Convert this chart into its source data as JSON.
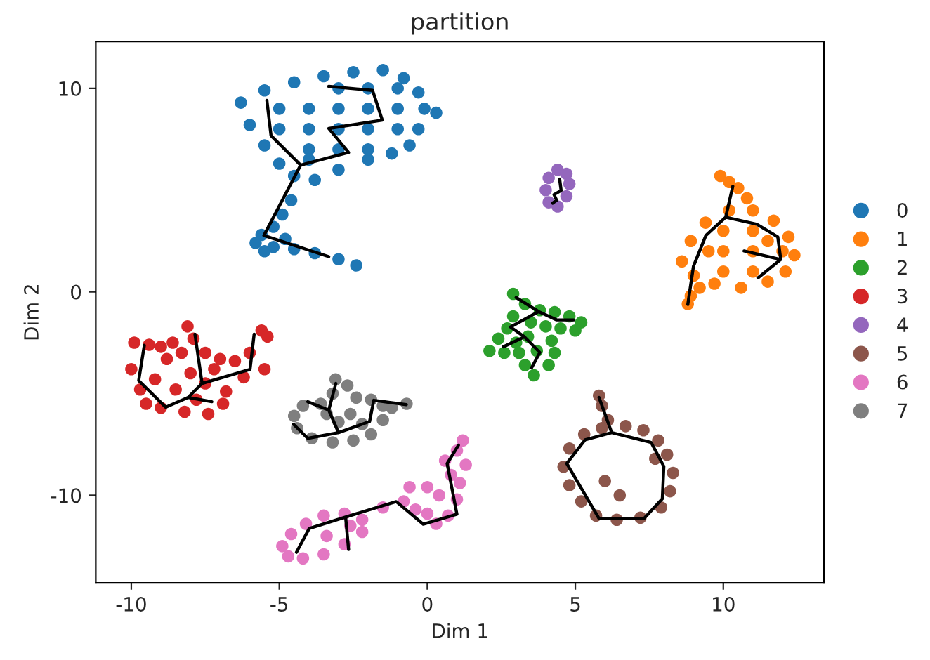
{
  "chart_data": {
    "type": "scatter",
    "title": "partition",
    "xlabel": "Dim 1",
    "ylabel": "Dim 2",
    "xlim": [
      -11.2,
      13.4
    ],
    "ylim": [
      -14.3,
      12.3
    ],
    "xticks": [
      -10,
      -5,
      0,
      5,
      10
    ],
    "yticks": [
      -10,
      0,
      10
    ],
    "grid": false,
    "legend": "right",
    "marker": "circle",
    "series": [
      {
        "name": "0",
        "color": "#1f77b4",
        "x": [
          -6.3,
          -5.5,
          -4.5,
          -3.5,
          -2.5,
          -1.5,
          -0.8,
          -0.3,
          -0.1,
          0.3,
          -0.3,
          -0.6,
          -1.2,
          -2.0,
          -3.0,
          -3.8,
          -4.5,
          -5.0,
          -5.5,
          -6.0,
          -5,
          -4,
          -3,
          -2,
          -1,
          -5,
          -4,
          -3,
          -2,
          -1,
          -4,
          -3,
          -2,
          -4,
          -3,
          -2,
          -1,
          -4.6,
          -4.9,
          -5.2,
          -5.6,
          -5.8,
          -5.2,
          -4.5,
          -3.8,
          -3.0,
          -2.4,
          -4.8,
          -5.5
        ],
        "values": [
          9.3,
          9.9,
          10.3,
          10.6,
          10.8,
          10.9,
          10.5,
          9.8,
          9.0,
          8.8,
          8.0,
          7.2,
          6.8,
          6.5,
          6.0,
          5.5,
          5.7,
          6.3,
          7.2,
          8.2,
          9,
          9,
          9,
          9,
          9,
          8,
          8,
          8,
          8,
          8,
          7,
          7,
          7,
          6.5,
          10,
          10,
          10,
          4.5,
          3.8,
          3.2,
          2.8,
          2.4,
          2.2,
          2.1,
          1.9,
          1.6,
          1.3,
          2.6,
          2.0
        ]
      },
      {
        "name": "1",
        "color": "#ff7f0e",
        "x": [
          8.6,
          8.9,
          9.4,
          10.2,
          11.0,
          11.7,
          12.2,
          12.4,
          12.1,
          11.5,
          10.6,
          9.7,
          9.0,
          10,
          11,
          10,
          11,
          12,
          10,
          11,
          9.5,
          11.5,
          9.9,
          10.2,
          10.5,
          10.8,
          8.8,
          8.9,
          9.2
        ],
        "values": [
          1.5,
          2.5,
          3.4,
          4.0,
          4.0,
          3.5,
          2.7,
          1.8,
          1.0,
          0.5,
          0.2,
          0.4,
          0.8,
          3,
          3,
          2,
          2,
          2,
          1,
          1,
          2,
          2.5,
          5.7,
          5.4,
          5.1,
          4.6,
          -0.6,
          -0.2,
          0.2
        ]
      },
      {
        "name": "2",
        "color": "#2ca02c",
        "x": [
          2.9,
          3.3,
          3.8,
          4.3,
          4.8,
          5.2,
          5.0,
          4.5,
          4.0,
          4.2,
          4.3,
          4.1,
          3.6,
          3.3,
          3.1,
          2.6,
          2.1,
          2.4,
          2.7,
          2.9,
          3.5,
          3.4,
          3.7,
          3.0
        ],
        "values": [
          -0.1,
          -0.6,
          -0.9,
          -1.0,
          -1.2,
          -1.5,
          -1.9,
          -1.8,
          -1.7,
          -2.4,
          -3.0,
          -3.6,
          -4.1,
          -3.6,
          -3.0,
          -3.0,
          -2.9,
          -2.3,
          -1.8,
          -1.2,
          -1.5,
          -2.2,
          -2.9,
          -2.5
        ]
      },
      {
        "name": "3",
        "color": "#d62728",
        "x": [
          -9.9,
          -9.4,
          -9.0,
          -8.6,
          -8.1,
          -7.9,
          -7.5,
          -7.0,
          -6.5,
          -6.0,
          -5.6,
          -5.4,
          -5.5,
          -6.2,
          -6.8,
          -6.9,
          -7.4,
          -8.2,
          -9.0,
          -9.5,
          -9.7,
          -10.0,
          -9.2,
          -8.5,
          -8.0,
          -7.5,
          -8.8,
          -7.2,
          -8.3,
          -7.8
        ],
        "values": [
          -2.5,
          -2.6,
          -2.7,
          -2.5,
          -1.7,
          -2.3,
          -3.0,
          -3.3,
          -3.4,
          -3.0,
          -1.9,
          -2.2,
          -3.8,
          -4.2,
          -4.9,
          -5.5,
          -6.0,
          -5.9,
          -5.7,
          -5.5,
          -4.8,
          -3.8,
          -4.3,
          -4.8,
          -4.0,
          -4.5,
          -3.3,
          -3.8,
          -3.0,
          -5.3
        ]
      },
      {
        "name": "4",
        "color": "#9467bd",
        "x": [
          4.4,
          4.7,
          4.8,
          4.7,
          4.4,
          4.1,
          4.0,
          4.1
        ],
        "values": [
          6.0,
          5.8,
          5.3,
          4.7,
          4.2,
          4.4,
          5.0,
          5.6
        ]
      },
      {
        "name": "5",
        "color": "#8c564b",
        "x": [
          5.8,
          5.9,
          6.1,
          6.7,
          7.3,
          7.8,
          8.1,
          8.3,
          8.2,
          7.9,
          7.2,
          6.4,
          5.7,
          5.2,
          4.8,
          4.6,
          4.8,
          5.3,
          5.9,
          6.0,
          6.5,
          7.7
        ],
        "values": [
          -5.1,
          -5.6,
          -6.3,
          -6.6,
          -6.8,
          -7.3,
          -8.0,
          -8.9,
          -9.8,
          -10.6,
          -11.1,
          -11.2,
          -11.0,
          -10.3,
          -9.5,
          -8.6,
          -7.7,
          -7.0,
          -6.7,
          -9.3,
          -10.0,
          -8.2
        ]
      },
      {
        "name": "6",
        "color": "#e377c2",
        "x": [
          -4.9,
          -4.6,
          -4.1,
          -3.5,
          -2.8,
          -2.2,
          -2.2,
          -2.8,
          -3.5,
          -4.2,
          -4.7,
          -3.4,
          -2.6,
          -1.5,
          -0.8,
          -0.6,
          0.0,
          0.4,
          0.0,
          0.3,
          0.7,
          1.0,
          1.1,
          0.8,
          0.6,
          1.0,
          1.2,
          1.3,
          -0.4
        ],
        "values": [
          -12.5,
          -11.9,
          -11.4,
          -11.0,
          -10.9,
          -11.2,
          -11.8,
          -12.4,
          -12.9,
          -13.1,
          -13.0,
          -12.0,
          -11.5,
          -10.6,
          -10.3,
          -9.6,
          -9.6,
          -10.0,
          -10.9,
          -11.4,
          -11.0,
          -10.2,
          -9.4,
          -9.0,
          -8.3,
          -7.8,
          -7.3,
          -8.5,
          -10.7
        ]
      },
      {
        "name": "7",
        "color": "#7f7f7f",
        "x": [
          -3.1,
          -2.7,
          -2.4,
          -1.9,
          -1.5,
          -1.2,
          -0.7,
          -1.5,
          -1.9,
          -2.5,
          -3.2,
          -3.9,
          -4.4,
          -4.5,
          -4.2,
          -3.6,
          -3.2,
          -2.6,
          -3.0,
          -3.4,
          -2.2
        ],
        "values": [
          -4.3,
          -4.6,
          -5.2,
          -5.3,
          -5.6,
          -5.7,
          -5.5,
          -6.3,
          -7.0,
          -7.3,
          -7.4,
          -7.2,
          -6.7,
          -6.1,
          -5.6,
          -5.5,
          -5.0,
          -6.0,
          -6.4,
          -6.0,
          -6.5
        ]
      },
      {
        "type": "line",
        "color": "#000000",
        "marker": "none",
        "x": [
          -5.42,
          -5.28,
          -4.28,
          -2.66,
          -3.33,
          -1.52,
          -1.85,
          -3.33,
          null,
          -4.28,
          -5.52,
          -3.33
        ],
        "values": [
          9.41,
          7.68,
          6.23,
          6.85,
          8.03,
          8.44,
          9.9,
          10.1,
          null,
          6.23,
          2.77,
          1.73
        ]
      },
      {
        "type": "line",
        "color": "#000000",
        "marker": "none",
        "x": [
          10.32,
          10.08,
          9.41,
          8.99,
          8.8,
          null,
          10.08,
          11.13,
          11.84,
          11.94,
          10.7,
          null,
          11.94,
          11.17
        ],
        "values": [
          5.19,
          3.67,
          2.77,
          1.25,
          -0.62,
          null,
          3.67,
          3.32,
          2.7,
          1.59,
          2.01,
          null,
          1.59,
          0.69
        ]
      },
      {
        "type": "line",
        "color": "#000000",
        "marker": "none",
        "x": [
          3.0,
          3.76,
          4.37,
          4.95,
          null,
          3.76,
          2.81,
          3.28,
          2.57,
          null,
          3.28,
          3.8,
          3.52
        ],
        "values": [
          -0.28,
          -0.97,
          -1.38,
          -1.38,
          null,
          -0.97,
          -1.73,
          -2.21,
          -2.7,
          null,
          -2.21,
          -2.98,
          -3.74
        ]
      },
      {
        "type": "line",
        "color": "#000000",
        "marker": "none",
        "x": [
          -9.56,
          -9.75,
          -8.84,
          -8.08,
          -7.28,
          null,
          -8.08,
          -7.61,
          -7.85,
          null,
          -7.61,
          -5.99,
          -5.85
        ],
        "values": [
          -2.63,
          -4.36,
          -5.67,
          -5.19,
          -5.4,
          null,
          -5.19,
          -4.5,
          -2.08,
          null,
          -4.5,
          -3.81,
          -2.08
        ]
      },
      {
        "type": "line",
        "color": "#000000",
        "marker": "none",
        "x": [
          4.47,
          4.52,
          4.28,
          4.37,
          4.23
        ],
        "values": [
          5.54,
          4.98,
          4.78,
          4.5,
          4.36
        ]
      },
      {
        "type": "line",
        "color": "#000000",
        "marker": "none",
        "x": [
          5.8,
          6.23,
          5.33,
          4.71,
          5.8,
          7.32,
          7.94,
          7.99,
          7.56,
          6.23
        ],
        "values": [
          -5.19,
          -6.92,
          -7.27,
          -8.44,
          -11.14,
          -11.14,
          -10.17,
          -8.58,
          -7.4,
          -6.92
        ]
      },
      {
        "type": "line",
        "color": "#000000",
        "marker": "none",
        "x": [
          -4.42,
          -3.99,
          -2.76,
          -1.05,
          -0.14,
          1.0,
          0.67,
          1.05,
          null,
          -2.76,
          -2.66
        ],
        "values": [
          -12.8,
          -11.63,
          -11.07,
          -10.31,
          -11.42,
          -10.93,
          -8.44,
          -7.54,
          null,
          -11.07,
          -12.66
        ]
      },
      {
        "type": "line",
        "color": "#000000",
        "marker": "none",
        "x": [
          -3.09,
          -3.33,
          -4.04,
          null,
          -3.33,
          -3.0,
          -1.95,
          -1.81,
          -0.71,
          null,
          -3.0,
          -4.04,
          -4.52
        ],
        "values": [
          -4.5,
          -5.81,
          -5.4,
          null,
          -5.81,
          -6.92,
          -6.37,
          -5.33,
          -5.54,
          null,
          -6.92,
          -7.2,
          -6.51
        ]
      }
    ]
  }
}
